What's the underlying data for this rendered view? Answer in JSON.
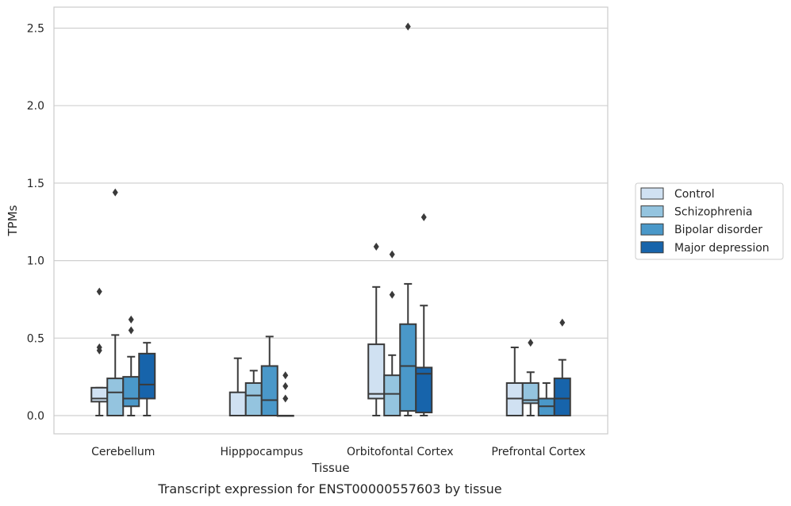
{
  "chart_data": {
    "type": "box",
    "caption": "Transcript expression for ENST00000557603 by tissue",
    "xlabel": "Tissue",
    "ylabel": "TPMs",
    "ylim": [
      -0.12,
      2.65
    ],
    "yticks": [
      0.0,
      0.5,
      1.0,
      1.5,
      2.0,
      2.5
    ],
    "ytick_labels": [
      "0.0",
      "0.5",
      "1.0",
      "1.5",
      "2.0",
      "2.5"
    ],
    "grid": "horizontal",
    "legend_position": "right",
    "categories": [
      "Cerebellum",
      "Hipppocampus",
      "Orbitofontal Cortex",
      "Prefrontal Cortex"
    ],
    "series": [
      {
        "name": "Control",
        "color": "#d0e1f2",
        "boxes": [
          {
            "whislo": 0.0,
            "q1": 0.09,
            "med": 0.11,
            "q3": 0.18,
            "whishi": 0.18,
            "fliers": [
              0.8,
              0.44,
              0.42
            ]
          },
          {
            "whislo": 0.0,
            "q1": 0.0,
            "med": 0.0,
            "q3": 0.15,
            "whishi": 0.37,
            "fliers": []
          },
          {
            "whislo": 0.0,
            "q1": 0.11,
            "med": 0.14,
            "q3": 0.46,
            "whishi": 0.83,
            "fliers": [
              1.09
            ]
          },
          {
            "whislo": 0.0,
            "q1": 0.0,
            "med": 0.11,
            "q3": 0.21,
            "whishi": 0.44,
            "fliers": []
          }
        ]
      },
      {
        "name": "Schizophrenia",
        "color": "#94c4df",
        "boxes": [
          {
            "whislo": 0.0,
            "q1": 0.0,
            "med": 0.15,
            "q3": 0.24,
            "whishi": 0.52,
            "fliers": [
              1.44
            ]
          },
          {
            "whislo": 0.0,
            "q1": 0.0,
            "med": 0.13,
            "q3": 0.21,
            "whishi": 0.29,
            "fliers": []
          },
          {
            "whislo": 0.0,
            "q1": 0.0,
            "med": 0.14,
            "q3": 0.26,
            "whishi": 0.39,
            "fliers": [
              1.04,
              0.78
            ]
          },
          {
            "whislo": 0.0,
            "q1": 0.08,
            "med": 0.1,
            "q3": 0.21,
            "whishi": 0.28,
            "fliers": [
              0.47
            ]
          }
        ]
      },
      {
        "name": "Bipolar disorder",
        "color": "#4a98c9",
        "boxes": [
          {
            "whislo": 0.0,
            "q1": 0.06,
            "med": 0.11,
            "q3": 0.25,
            "whishi": 0.38,
            "fliers": [
              0.62,
              0.55
            ]
          },
          {
            "whislo": 0.0,
            "q1": 0.0,
            "med": 0.1,
            "q3": 0.32,
            "whishi": 0.51,
            "fliers": []
          },
          {
            "whislo": 0.0,
            "q1": 0.03,
            "med": 0.32,
            "q3": 0.59,
            "whishi": 0.85,
            "fliers": [
              2.51
            ]
          },
          {
            "whislo": 0.0,
            "q1": 0.0,
            "med": 0.06,
            "q3": 0.11,
            "whishi": 0.21,
            "fliers": []
          }
        ]
      },
      {
        "name": "Major depression",
        "color": "#1764ab",
        "boxes": [
          {
            "whislo": 0.0,
            "q1": 0.11,
            "med": 0.2,
            "q3": 0.4,
            "whishi": 0.47,
            "fliers": []
          },
          {
            "whislo": 0.0,
            "q1": 0.0,
            "med": 0.0,
            "q3": 0.0,
            "whishi": 0.0,
            "fliers": [
              0.26,
              0.19,
              0.11
            ]
          },
          {
            "whislo": 0.0,
            "q1": 0.02,
            "med": 0.27,
            "q3": 0.31,
            "whishi": 0.71,
            "fliers": [
              1.28
            ]
          },
          {
            "whislo": 0.0,
            "q1": 0.0,
            "med": 0.11,
            "q3": 0.24,
            "whishi": 0.36,
            "fliers": [
              0.6
            ]
          }
        ]
      }
    ]
  }
}
